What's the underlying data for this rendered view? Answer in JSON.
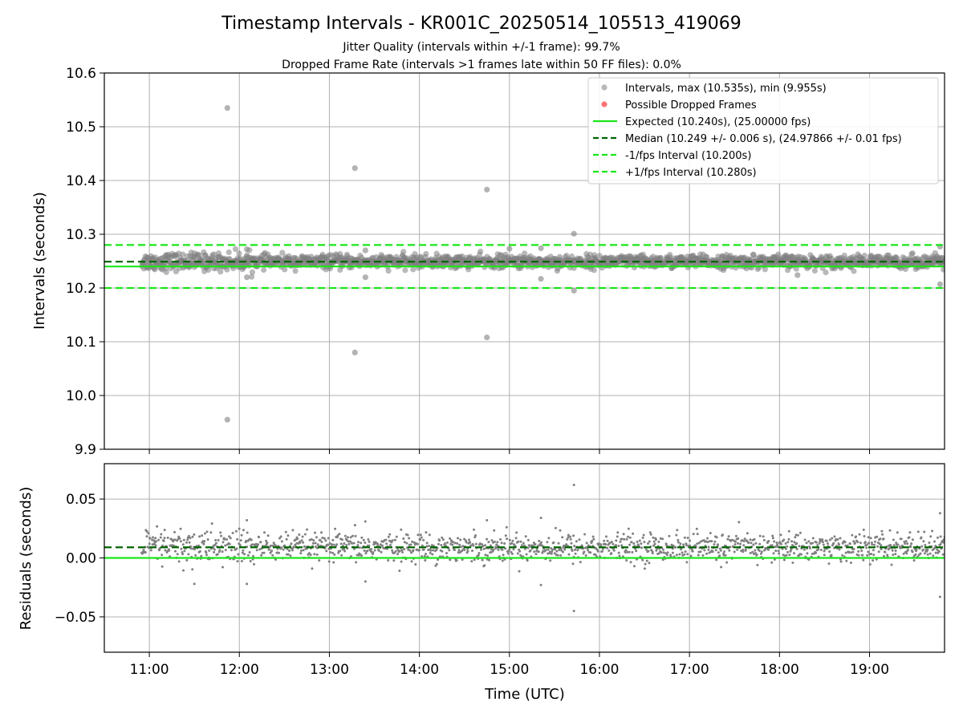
{
  "title": "Timestamp Intervals - KR001C_20250514_105513_419069",
  "subtitle1": "Jitter Quality (intervals within +/-1 frame): 99.7%",
  "subtitle2": "Dropped Frame Rate (intervals >1 frames late within 50 FF files): 0.0%",
  "colors": {
    "points": "#808080",
    "dropped": "#ff0000",
    "expected": "#1ae61a",
    "median": "#006400",
    "bound": "#1ae61a",
    "grid": "#b0b0b0"
  },
  "chart_data": [
    {
      "type": "scatter",
      "ylabel": "Intervals (seconds)",
      "xlim": [
        "10:30",
        "19:50"
      ],
      "ylim": [
        9.9,
        10.6
      ],
      "yticks": [
        "9.9",
        "10.0",
        "10.1",
        "10.2",
        "10.3",
        "10.4",
        "10.5",
        "10.6"
      ],
      "grid": true,
      "legend_position": "top-right",
      "legend": [
        {
          "label": "Intervals, max (10.535s), min (9.955s)",
          "kind": "dot",
          "color": "#808080"
        },
        {
          "label": "Possible Dropped Frames",
          "kind": "dot",
          "color": "#ff0000"
        },
        {
          "label": "Expected (10.240s), (25.00000 fps)",
          "kind": "solid",
          "color": "#1ae61a"
        },
        {
          "label": "Median (10.249 +/- 0.006 s), (24.97866 +/- 0.01 fps)",
          "kind": "dashed",
          "color": "#006400"
        },
        {
          "label": "-1/fps Interval (10.200s)",
          "kind": "dashed",
          "color": "#1ae61a"
        },
        {
          "label": "+1/fps Interval (10.280s)",
          "kind": "dashed",
          "color": "#1ae61a"
        }
      ],
      "reference_lines": {
        "expected": 10.24,
        "median": 10.249,
        "minus_one_frame": 10.2,
        "plus_one_frame": 10.28
      },
      "series": [
        {
          "name": "Intervals, max (10.535s), min (9.955s)",
          "x_range": [
            "10:55",
            "19:50"
          ],
          "y_median": 10.249,
          "y_std": 0.006,
          "max": 10.535,
          "min": 9.955
        }
      ],
      "outliers": [
        {
          "x": "11:52",
          "y": 10.535
        },
        {
          "x": "11:52",
          "y": 9.955
        },
        {
          "x": "13:17",
          "y": 10.423
        },
        {
          "x": "13:17",
          "y": 10.08
        },
        {
          "x": "14:45",
          "y": 10.383
        },
        {
          "x": "14:45",
          "y": 10.108
        },
        {
          "x": "15:43",
          "y": 10.301
        },
        {
          "x": "15:43",
          "y": 10.195
        },
        {
          "x": "12:05",
          "y": 10.272
        },
        {
          "x": "12:05",
          "y": 10.22
        },
        {
          "x": "13:24",
          "y": 10.27
        },
        {
          "x": "13:24",
          "y": 10.22
        },
        {
          "x": "15:00",
          "y": 10.273
        },
        {
          "x": "15:21",
          "y": 10.274
        },
        {
          "x": "15:21",
          "y": 10.217
        },
        {
          "x": "18:12",
          "y": 10.224
        },
        {
          "x": "19:47",
          "y": 10.207
        },
        {
          "x": "19:47",
          "y": 10.277
        }
      ]
    },
    {
      "type": "scatter",
      "xlabel": "Time (UTC)",
      "ylabel": "Residuals (seconds)",
      "xlim": [
        "10:30",
        "19:50"
      ],
      "ylim": [
        -0.08,
        0.08
      ],
      "xticks": [
        "11:00",
        "12:00",
        "13:00",
        "14:00",
        "15:00",
        "16:00",
        "17:00",
        "18:00",
        "19:00"
      ],
      "yticks": [
        "−0.05",
        "0.00",
        "0.05"
      ],
      "grid": true,
      "reference_lines": {
        "zero": 0.0,
        "median_offset": 0.009
      },
      "series": [
        {
          "name": "Residuals",
          "x_range": [
            "10:55",
            "19:50"
          ],
          "y_mean": 0.009,
          "y_std": 0.006
        }
      ],
      "outliers": [
        {
          "x": "15:43",
          "y": 0.062
        },
        {
          "x": "15:43",
          "y": -0.045
        },
        {
          "x": "19:47",
          "y": 0.038
        },
        {
          "x": "19:47",
          "y": -0.033
        },
        {
          "x": "15:21",
          "y": 0.034
        },
        {
          "x": "15:21",
          "y": -0.023
        },
        {
          "x": "13:24",
          "y": 0.031
        },
        {
          "x": "13:24",
          "y": -0.02
        },
        {
          "x": "14:45",
          "y": 0.032
        },
        {
          "x": "12:05",
          "y": 0.032
        },
        {
          "x": "12:05",
          "y": -0.022
        },
        {
          "x": "11:30",
          "y": -0.022
        }
      ]
    }
  ]
}
